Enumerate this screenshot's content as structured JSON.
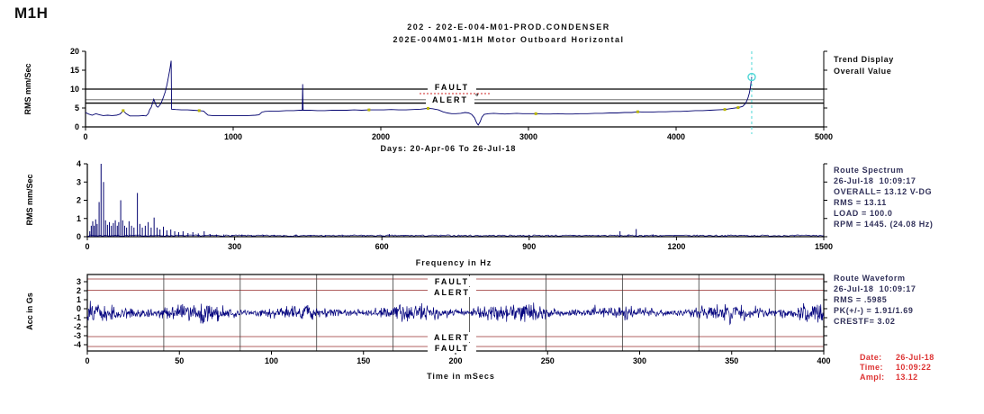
{
  "page": {
    "label": "M1H"
  },
  "header": {
    "title_line1": "202  - 202-E-004-M01-PROD.CONDENSER",
    "title_line2": "202E-004M01-M1H    Motor Outboard Horizontal"
  },
  "footer": {
    "rows": [
      {
        "label": "Date:",
        "value": "26-Jul-18"
      },
      {
        "label": "Time:",
        "value": "10:09:22"
      },
      {
        "label": "Ampl:",
        "value": "13.12"
      }
    ]
  },
  "colors": {
    "series_navy": "#00006e",
    "limit_red_line": "#b06060",
    "label_red": "#cc2222",
    "cursor_cyan": "#4fd6d6",
    "info_navy": "#31315a",
    "footer_red": "#dd3333",
    "event_yellow": "#b8b400",
    "reference_gray": "#8a8a8a",
    "rev_marker_gray": "#3a3a3a"
  },
  "chart_data": [
    {
      "id": "trend",
      "type": "line",
      "title": "Trend Display Overall Value",
      "right_info": [
        "Trend Display",
        "Overall Value"
      ],
      "ylabel": "RMS mm/Sec",
      "xlabel": "Days:  20-Apr-06  To  26-Jul-18",
      "xlim": [
        0,
        5000
      ],
      "ylim": [
        0,
        20
      ],
      "xticks": [
        0,
        1000,
        2000,
        3000,
        4000,
        5000
      ],
      "yticks": [
        0,
        5,
        10,
        15,
        20
      ],
      "grid": false,
      "limits": {
        "fault": 10,
        "alert": 6.3,
        "reference": 7.2
      },
      "limit_labels": {
        "fault": "FAULT",
        "alert": "ALERT",
        "alert_suffix": "°"
      },
      "cursor": {
        "x": 4512,
        "y": 13.2
      },
      "points": [
        [
          0,
          3.8
        ],
        [
          20,
          3.4
        ],
        [
          45,
          3.1
        ],
        [
          70,
          3.5
        ],
        [
          95,
          3.2
        ],
        [
          120,
          3.0
        ],
        [
          150,
          3.1
        ],
        [
          180,
          3.0
        ],
        [
          210,
          3.1
        ],
        [
          235,
          3.4
        ],
        [
          255,
          4.3
        ],
        [
          275,
          3.5
        ],
        [
          300,
          2.9
        ],
        [
          330,
          2.9
        ],
        [
          360,
          2.9
        ],
        [
          390,
          3.0
        ],
        [
          410,
          2.9
        ],
        [
          425,
          3.5
        ],
        [
          435,
          4.6
        ],
        [
          445,
          5.2
        ],
        [
          455,
          6.4
        ],
        [
          462,
          7.3
        ],
        [
          470,
          6.5
        ],
        [
          480,
          5.5
        ],
        [
          490,
          5.2
        ],
        [
          500,
          5.6
        ],
        [
          512,
          6.3
        ],
        [
          525,
          7.6
        ],
        [
          540,
          9.3
        ],
        [
          552,
          11.2
        ],
        [
          562,
          13.3
        ],
        [
          572,
          15.4
        ],
        [
          580,
          17.5
        ],
        [
          583,
          4.7
        ],
        [
          610,
          4.6
        ],
        [
          650,
          4.5
        ],
        [
          690,
          4.5
        ],
        [
          730,
          4.4
        ],
        [
          770,
          4.3
        ],
        [
          800,
          4.2
        ],
        [
          815,
          3.6
        ],
        [
          830,
          3.1
        ],
        [
          860,
          3.0
        ],
        [
          900,
          3.0
        ],
        [
          950,
          3.0
        ],
        [
          1000,
          3.0
        ],
        [
          1050,
          3.0
        ],
        [
          1100,
          3.0
        ],
        [
          1150,
          3.1
        ],
        [
          1175,
          3.2
        ],
        [
          1195,
          3.9
        ],
        [
          1215,
          4.1
        ],
        [
          1260,
          4.2
        ],
        [
          1310,
          4.2
        ],
        [
          1360,
          4.3
        ],
        [
          1410,
          4.3
        ],
        [
          1450,
          4.4
        ],
        [
          1468,
          4.4
        ],
        [
          1471,
          11.3
        ],
        [
          1474,
          4.4
        ],
        [
          1520,
          4.4
        ],
        [
          1570,
          4.3
        ],
        [
          1620,
          4.3
        ],
        [
          1670,
          4.4
        ],
        [
          1720,
          4.4
        ],
        [
          1770,
          4.4
        ],
        [
          1820,
          4.5
        ],
        [
          1870,
          4.4
        ],
        [
          1920,
          4.5
        ],
        [
          1970,
          4.5
        ],
        [
          2020,
          4.5
        ],
        [
          2070,
          4.6
        ],
        [
          2120,
          4.5
        ],
        [
          2170,
          4.5
        ],
        [
          2220,
          4.6
        ],
        [
          2270,
          4.7
        ],
        [
          2320,
          4.9
        ],
        [
          2350,
          4.8
        ],
        [
          2390,
          4.5
        ],
        [
          2420,
          4.0
        ],
        [
          2450,
          3.7
        ],
        [
          2480,
          3.5
        ],
        [
          2510,
          3.5
        ],
        [
          2540,
          3.6
        ],
        [
          2570,
          3.8
        ],
        [
          2595,
          3.7
        ],
        [
          2615,
          3.3
        ],
        [
          2635,
          2.4
        ],
        [
          2650,
          1.0
        ],
        [
          2660,
          0.5
        ],
        [
          2672,
          1.3
        ],
        [
          2685,
          2.6
        ],
        [
          2700,
          3.3
        ],
        [
          2730,
          3.5
        ],
        [
          2765,
          3.6
        ],
        [
          2800,
          3.5
        ],
        [
          2840,
          3.4
        ],
        [
          2880,
          3.5
        ],
        [
          2920,
          3.6
        ],
        [
          2960,
          3.5
        ],
        [
          3000,
          3.5
        ],
        [
          3050,
          3.5
        ],
        [
          3100,
          3.4
        ],
        [
          3150,
          3.4
        ],
        [
          3200,
          3.5
        ],
        [
          3250,
          3.4
        ],
        [
          3300,
          3.4
        ],
        [
          3350,
          3.5
        ],
        [
          3400,
          3.5
        ],
        [
          3450,
          3.6
        ],
        [
          3500,
          3.6
        ],
        [
          3550,
          3.7
        ],
        [
          3600,
          3.7
        ],
        [
          3650,
          3.8
        ],
        [
          3700,
          3.8
        ],
        [
          3740,
          4.0
        ],
        [
          3780,
          3.9
        ],
        [
          3830,
          3.9
        ],
        [
          3880,
          4.0
        ],
        [
          3930,
          4.0
        ],
        [
          3980,
          4.1
        ],
        [
          4030,
          4.1
        ],
        [
          4080,
          4.2
        ],
        [
          4130,
          4.3
        ],
        [
          4180,
          4.3
        ],
        [
          4230,
          4.4
        ],
        [
          4280,
          4.5
        ],
        [
          4330,
          4.6
        ],
        [
          4380,
          4.9
        ],
        [
          4420,
          5.1
        ],
        [
          4450,
          5.4
        ],
        [
          4470,
          6.2
        ],
        [
          4485,
          7.4
        ],
        [
          4495,
          8.8
        ],
        [
          4503,
          10.4
        ],
        [
          4508,
          11.9
        ],
        [
          4512,
          13.2
        ]
      ],
      "event_markers": [
        [
          255,
          4.3
        ],
        [
          770,
          4.3
        ],
        [
          1920,
          4.5
        ],
        [
          2320,
          4.9
        ],
        [
          3050,
          3.5
        ],
        [
          3740,
          4.0
        ],
        [
          4330,
          4.6
        ],
        [
          4420,
          5.1
        ]
      ]
    },
    {
      "id": "spectrum",
      "type": "bar",
      "title": "Route Spectrum",
      "right_info": [
        "Route Spectrum",
        "26-Jul-18  10:09:17",
        "OVERALL= 13.12 V-DG",
        "RMS = 13.11",
        "LOAD = 100.0",
        "RPM = 1445. (24.08 Hz)"
      ],
      "ylabel": "RMS mm/Sec",
      "xlabel": "Frequency in Hz",
      "xlim": [
        0,
        1500
      ],
      "ylim": [
        0,
        4
      ],
      "xticks": [
        0,
        300,
        600,
        900,
        1200,
        1500
      ],
      "yticks": [
        0,
        1,
        2,
        3,
        4
      ],
      "grid": false,
      "peaks": [
        [
          5,
          0.3
        ],
        [
          8,
          0.6
        ],
        [
          11,
          0.85
        ],
        [
          14,
          0.6
        ],
        [
          17,
          0.95
        ],
        [
          20,
          0.7
        ],
        [
          24,
          1.9
        ],
        [
          28,
          4.0
        ],
        [
          33,
          3.0
        ],
        [
          37,
          0.9
        ],
        [
          41,
          0.65
        ],
        [
          45,
          0.8
        ],
        [
          49,
          0.6
        ],
        [
          53,
          0.75
        ],
        [
          57,
          0.9
        ],
        [
          61,
          0.6
        ],
        [
          64,
          0.8
        ],
        [
          68,
          2.0
        ],
        [
          72,
          0.9
        ],
        [
          76,
          0.6
        ],
        [
          80,
          0.5
        ],
        [
          85,
          0.85
        ],
        [
          90,
          0.6
        ],
        [
          95,
          0.5
        ],
        [
          102,
          2.4
        ],
        [
          107,
          0.7
        ],
        [
          112,
          0.5
        ],
        [
          118,
          0.6
        ],
        [
          124,
          0.8
        ],
        [
          130,
          0.5
        ],
        [
          136,
          1.05
        ],
        [
          142,
          0.5
        ],
        [
          148,
          0.4
        ],
        [
          155,
          0.55
        ],
        [
          162,
          0.35
        ],
        [
          170,
          0.4
        ],
        [
          178,
          0.3
        ],
        [
          186,
          0.25
        ],
        [
          195,
          0.3
        ],
        [
          205,
          0.2
        ],
        [
          215,
          0.25
        ],
        [
          226,
          0.18
        ],
        [
          238,
          0.3
        ],
        [
          250,
          0.15
        ],
        [
          263,
          0.12
        ],
        [
          278,
          0.12
        ],
        [
          295,
          0.1
        ],
        [
          315,
          0.12
        ],
        [
          335,
          0.09
        ],
        [
          358,
          0.1
        ],
        [
          380,
          0.09
        ],
        [
          400,
          0.1
        ],
        [
          425,
          0.08
        ],
        [
          455,
          0.07
        ],
        [
          485,
          0.07
        ],
        [
          520,
          0.06
        ],
        [
          560,
          0.06
        ],
        [
          600,
          0.05
        ],
        [
          615,
          0.15
        ],
        [
          645,
          0.06
        ],
        [
          680,
          0.05
        ],
        [
          720,
          0.05
        ],
        [
          760,
          0.04
        ],
        [
          800,
          0.05
        ],
        [
          845,
          0.04
        ],
        [
          890,
          0.04
        ],
        [
          940,
          0.05
        ],
        [
          990,
          0.04
        ],
        [
          1040,
          0.06
        ],
        [
          1085,
          0.3
        ],
        [
          1102,
          0.12
        ],
        [
          1118,
          0.42
        ],
        [
          1135,
          0.1
        ],
        [
          1152,
          0.13
        ],
        [
          1170,
          0.08
        ],
        [
          1195,
          0.06
        ],
        [
          1225,
          0.05
        ],
        [
          1260,
          0.04
        ],
        [
          1300,
          0.05
        ],
        [
          1345,
          0.04
        ],
        [
          1390,
          0.04
        ],
        [
          1440,
          0.05
        ],
        [
          1490,
          0.04
        ]
      ]
    },
    {
      "id": "waveform",
      "type": "line",
      "title": "Route Waveform",
      "right_info": [
        "Route Waveform",
        "26-Jul-18  10:09:17",
        "RMS = .5985",
        "PK(+/-) = 1.91/1.69",
        "CRESTF= 3.02"
      ],
      "ylabel": "Acc in Gs",
      "xlabel": "Time in mSecs",
      "xlim": [
        0,
        400
      ],
      "ylim": [
        -4.7,
        3.8
      ],
      "xticks": [
        0,
        50,
        100,
        150,
        200,
        250,
        300,
        350,
        400
      ],
      "yticks": [
        3,
        2,
        1,
        0,
        -1,
        -2,
        -3,
        -4
      ],
      "grid": false,
      "limits": {
        "fault_hi": 3.3,
        "alert_hi": 2.05,
        "alert_lo": -3.1,
        "fault_lo": -4.2
      },
      "limit_labels": {
        "fault": "FAULT",
        "alert": "ALERT"
      },
      "rev_marker_interval_ms": 41.52,
      "stats": {
        "rms": 0.5985,
        "pk_pos": 1.91,
        "pk_neg": 1.69,
        "crest_factor": 3.02
      },
      "noise": {
        "mean": -0.45,
        "seed": 20180726,
        "n": 1500,
        "base_amp": 0.5,
        "mod_amp": 0.22,
        "mod_cycles": 7,
        "mod2_amp": 0.08,
        "mod2_cycles": 2.3
      }
    }
  ]
}
